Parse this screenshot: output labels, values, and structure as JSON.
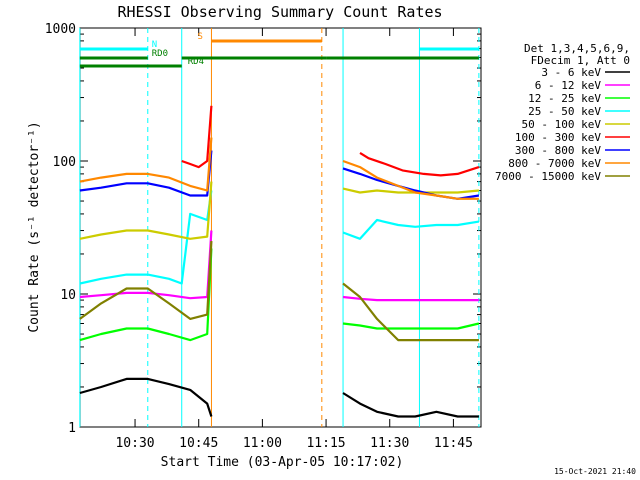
{
  "chart_data": {
    "type": "line",
    "title": "RHESSI Observing Summary Count Rates",
    "xlabel": "Start Time (03-Apr-05 10:17:02)",
    "ylabel": "Count Rate (s⁻¹ detector⁻¹)",
    "y_scale": "log",
    "ylim": [
      1,
      1000
    ],
    "xlim": [
      "10:17:02",
      "11:51:30"
    ],
    "x_ticks": [
      "10:30",
      "10:45",
      "11:00",
      "11:15",
      "11:30",
      "11:45"
    ],
    "y_ticks": [
      "1",
      "10",
      "100",
      "1000"
    ],
    "timestamp": "15-Oct-2021 21:40",
    "legend": {
      "position": "right",
      "header": [
        "Det 1,3,4,5,6,9,",
        "FDecim 1, Att 0"
      ]
    },
    "series": [
      {
        "name": "3 - 6 keV",
        "color": "#000000",
        "segments": [
          {
            "x": [
              "10:17",
              "10:22",
              "10:28",
              "10:33",
              "10:38",
              "10:43",
              "10:47",
              "10:48"
            ],
            "y": [
              1.8,
              2.0,
              2.3,
              2.3,
              2.1,
              1.9,
              1.5,
              1.2
            ]
          },
          {
            "x": [
              "11:19",
              "11:23",
              "11:27",
              "11:32",
              "11:36",
              "11:41",
              "11:46",
              "11:51"
            ],
            "y": [
              1.8,
              1.5,
              1.3,
              1.2,
              1.2,
              1.3,
              1.2,
              1.2
            ]
          }
        ]
      },
      {
        "name": "6 - 12 keV",
        "color": "#ff00ff",
        "segments": [
          {
            "x": [
              "10:17",
              "10:22",
              "10:28",
              "10:33",
              "10:38",
              "10:43",
              "10:47",
              "10:48"
            ],
            "y": [
              9.5,
              9.8,
              10.2,
              10.2,
              9.8,
              9.3,
              9.5,
              30
            ]
          },
          {
            "x": [
              "11:19",
              "11:23",
              "11:27",
              "11:32",
              "11:36",
              "11:41",
              "11:46",
              "11:51"
            ],
            "y": [
              9.5,
              9.2,
              9.0,
              9.0,
              9.0,
              9.0,
              9.0,
              9.0
            ]
          }
        ]
      },
      {
        "name": "12 - 25 keV",
        "color": "#00ff00",
        "segments": [
          {
            "x": [
              "10:17",
              "10:22",
              "10:28",
              "10:33",
              "10:38",
              "10:43",
              "10:47",
              "10:48"
            ],
            "y": [
              4.5,
              5.0,
              5.5,
              5.5,
              5.0,
              4.5,
              5.0,
              22
            ]
          },
          {
            "x": [
              "11:19",
              "11:23",
              "11:27",
              "11:32",
              "11:36",
              "11:41",
              "11:46",
              "11:51"
            ],
            "y": [
              6.0,
              5.8,
              5.5,
              5.5,
              5.5,
              5.5,
              5.5,
              6.0
            ]
          }
        ]
      },
      {
        "name": "25 - 50 keV",
        "color": "#00ffff",
        "segments": [
          {
            "x": [
              "10:17",
              "10:22",
              "10:28",
              "10:33",
              "10:38",
              "10:41",
              "10:43",
              "10:47",
              "10:48"
            ],
            "y": [
              12,
              13,
              14,
              14,
              13,
              12,
              40,
              36,
              60
            ]
          },
          {
            "x": [
              "11:19",
              "11:23",
              "11:27",
              "11:32",
              "11:36",
              "11:41",
              "11:46",
              "11:51"
            ],
            "y": [
              29,
              26,
              36,
              33,
              32,
              33,
              33,
              35
            ]
          }
        ]
      },
      {
        "name": "50 - 100 keV",
        "color": "#cccc00",
        "segments": [
          {
            "x": [
              "10:17",
              "10:22",
              "10:28",
              "10:33",
              "10:38",
              "10:43",
              "10:47",
              "10:48"
            ],
            "y": [
              26,
              28,
              30,
              30,
              28,
              26,
              27,
              70
            ]
          },
          {
            "x": [
              "11:19",
              "11:23",
              "11:27",
              "11:32",
              "11:36",
              "11:41",
              "11:46",
              "11:51"
            ],
            "y": [
              62,
              58,
              60,
              58,
              58,
              58,
              58,
              60
            ]
          }
        ]
      },
      {
        "name": "100 - 300 keV",
        "color": "#ff0000",
        "segments": [
          {
            "x": [
              "10:41",
              "10:43",
              "10:45",
              "10:47",
              "10:48"
            ],
            "y": [
              100,
              95,
              90,
              100,
              260
            ]
          },
          {
            "x": [
              "11:23",
              "11:25",
              "11:29",
              "11:33",
              "11:38",
              "11:42",
              "11:46",
              "11:51"
            ],
            "y": [
              115,
              105,
              95,
              85,
              80,
              78,
              80,
              90
            ]
          }
        ]
      },
      {
        "name": "300 - 800 keV",
        "color": "#0000ff",
        "segments": [
          {
            "x": [
              "10:17",
              "10:22",
              "10:28",
              "10:33",
              "10:38",
              "10:43",
              "10:47",
              "10:48"
            ],
            "y": [
              60,
              63,
              68,
              68,
              63,
              55,
              55,
              120
            ]
          },
          {
            "x": [
              "11:19",
              "11:23",
              "11:27",
              "11:32",
              "11:36",
              "11:41",
              "11:46",
              "11:51"
            ],
            "y": [
              88,
              80,
              72,
              65,
              60,
              55,
              52,
              55
            ]
          }
        ]
      },
      {
        "name": "800 - 7000 keV",
        "color": "#ff8800",
        "segments": [
          {
            "x": [
              "10:17",
              "10:22",
              "10:28",
              "10:33",
              "10:38",
              "10:43",
              "10:47",
              "10:48"
            ],
            "y": [
              70,
              75,
              80,
              80,
              75,
              65,
              60,
              150
            ]
          },
          {
            "x": [
              "11:19",
              "11:23",
              "11:27",
              "11:32",
              "11:36",
              "11:41",
              "11:46",
              "11:51"
            ],
            "y": [
              100,
              90,
              75,
              65,
              58,
              55,
              52,
              52
            ]
          }
        ]
      },
      {
        "name": "7000 - 15000 keV",
        "color": "#808000",
        "segments": [
          {
            "x": [
              "10:17",
              "10:22",
              "10:28",
              "10:33",
              "10:38",
              "10:43",
              "10:47",
              "10:48"
            ],
            "y": [
              6.5,
              8.5,
              11,
              11,
              8.5,
              6.5,
              7,
              25
            ]
          },
          {
            "x": [
              "11:19",
              "11:23",
              "11:27",
              "11:32",
              "11:36",
              "11:41",
              "11:46",
              "11:51"
            ],
            "y": [
              12,
              9.5,
              6.5,
              4.5,
              4.5,
              4.5,
              4.5,
              4.5
            ]
          }
        ]
      }
    ],
    "flag_bars": [
      {
        "label": "N",
        "color": "#00ffff",
        "level": 1,
        "intervals": [
          [
            "10:17",
            "10:33"
          ],
          [
            "11:37",
            "11:51"
          ]
        ]
      },
      {
        "label": "RD0",
        "color": "#008000",
        "level": 2,
        "intervals": [
          [
            "10:17",
            "10:33"
          ],
          [
            "10:41",
            "11:15"
          ],
          [
            "11:15",
            "11:25"
          ],
          [
            "11:25",
            "11:51"
          ]
        ]
      },
      {
        "label": "S",
        "color": "#ff8800",
        "level": 0,
        "intervals": [
          [
            "10:48",
            "11:14"
          ]
        ]
      },
      {
        "label": "RD4",
        "color": "#008000",
        "level": 3,
        "intervals": [
          [
            "10:17",
            "10:41"
          ]
        ]
      }
    ],
    "vlines": [
      {
        "time": "10:17",
        "color": "#00ffff",
        "style": "solid"
      },
      {
        "time": "10:33",
        "color": "#00ffff",
        "style": "dashed"
      },
      {
        "time": "10:41",
        "color": "#00ffff",
        "style": "solid"
      },
      {
        "time": "10:48",
        "color": "#ff8800",
        "style": "solid"
      },
      {
        "time": "11:14",
        "color": "#ff8800",
        "style": "dashed"
      },
      {
        "time": "11:19",
        "color": "#00ffff",
        "style": "solid"
      },
      {
        "time": "11:37",
        "color": "#00ffff",
        "style": "solid"
      },
      {
        "time": "11:51",
        "color": "#00ffff",
        "style": "dashed"
      }
    ]
  }
}
